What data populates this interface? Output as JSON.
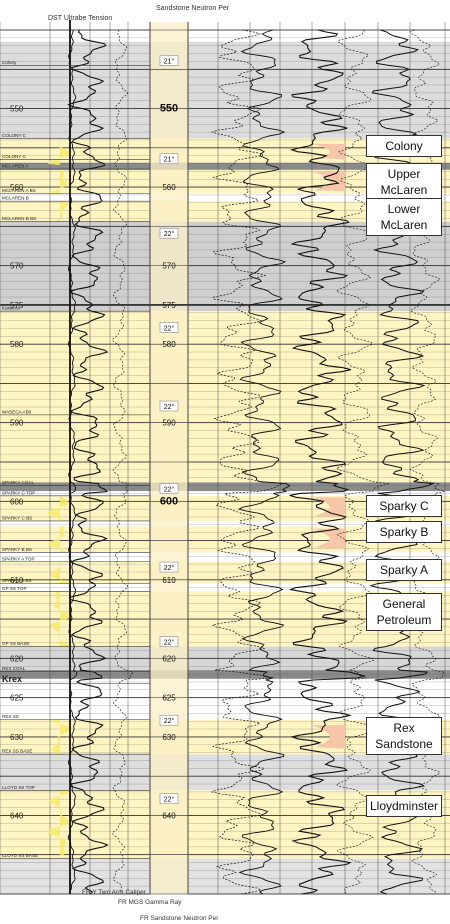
{
  "header": {
    "dst_label": "DST Ultrabe Tension",
    "sandstone_neutron": "Sandstone Neutron Per"
  },
  "footer": {
    "caliper": "FR Y Two Arm Caliper",
    "gamma": "FR MGS Gamma Ray",
    "neutron": "FR Sandstone Neutron Per"
  },
  "depth_axis": {
    "min": 540,
    "max": 650
  },
  "depth_labels": [
    {
      "depth": 550,
      "text": "550"
    },
    {
      "depth": 560,
      "text": "560"
    },
    {
      "depth": 570,
      "text": "570"
    },
    {
      "depth": 575,
      "text": "575"
    },
    {
      "depth": 580,
      "text": "580"
    },
    {
      "depth": 590,
      "text": "590"
    },
    {
      "depth": 600,
      "text": "600"
    },
    {
      "depth": 610,
      "text": "610"
    },
    {
      "depth": 620,
      "text": "620"
    },
    {
      "depth": 625,
      "text": "625"
    },
    {
      "depth": 630,
      "text": "630"
    },
    {
      "depth": 640,
      "text": "640"
    }
  ],
  "inclination_labels": [
    {
      "depth": 544,
      "text": "21°"
    },
    {
      "depth": 556.5,
      "text": "21°"
    },
    {
      "depth": 566,
      "text": "22°"
    },
    {
      "depth": 578,
      "text": "22°"
    },
    {
      "depth": 588,
      "text": "22°"
    },
    {
      "depth": 598.5,
      "text": "22°"
    },
    {
      "depth": 608.5,
      "text": "22°"
    },
    {
      "depth": 618,
      "text": "22°"
    },
    {
      "depth": 628,
      "text": "22°"
    },
    {
      "depth": 638,
      "text": "22°"
    }
  ],
  "markers": [
    {
      "depth": 544.5,
      "text": "Colony"
    },
    {
      "depth": 553.8,
      "text": "COLONY C"
    },
    {
      "depth": 556.5,
      "text": "COLONY C"
    },
    {
      "depth": 557.7,
      "text": "MCLAREN A"
    },
    {
      "depth": 560.8,
      "text": "MCLAREN A BS"
    },
    {
      "depth": 561.8,
      "text": "MCLAREN B"
    },
    {
      "depth": 564.4,
      "text": "MCLAREN B BS"
    },
    {
      "depth": 575.8,
      "text": "Kasseca"
    },
    {
      "depth": 589,
      "text": "WASECA AB0"
    },
    {
      "depth": 598,
      "text": "SPARKY COAL"
    },
    {
      "depth": 599.3,
      "text": "SPARKY C TOP"
    },
    {
      "depth": 602.5,
      "text": "SPARKY C BS"
    },
    {
      "depth": 606.5,
      "text": "SPARKY B BS"
    },
    {
      "depth": 607.7,
      "text": "SPARKY A TOP"
    },
    {
      "depth": 610.5,
      "text": "SPARKY A BS"
    },
    {
      "depth": 611.5,
      "text": "GP SS TOP"
    },
    {
      "depth": 618.5,
      "text": "GP SS BASE"
    },
    {
      "depth": 621.7,
      "text": "REX COAL"
    },
    {
      "depth": 623.2,
      "text": "Krex"
    },
    {
      "depth": 627.8,
      "text": "REX SS"
    },
    {
      "depth": 632.2,
      "text": "REX SS BASE"
    },
    {
      "depth": 636.8,
      "text": "LLOYD SS TOP"
    },
    {
      "depth": 645.5,
      "text": "LLOYD SS BASE"
    }
  ],
  "zones": [
    {
      "top": 553.8,
      "bottom": 557.2,
      "color": "#fff5c2"
    },
    {
      "top": 557.7,
      "bottom": 560.8,
      "color": "#fff5c2"
    },
    {
      "top": 561.8,
      "bottom": 564.4,
      "color": "#fff5c2"
    },
    {
      "top": 575.8,
      "bottom": 597.6,
      "color": "#fff5c2"
    },
    {
      "top": 599.3,
      "bottom": 602.5,
      "color": "#fff5c2"
    },
    {
      "top": 603.2,
      "bottom": 606.5,
      "color": "#fff5c2"
    },
    {
      "top": 607.7,
      "bottom": 610.5,
      "color": "#fff5c2"
    },
    {
      "top": 611.5,
      "bottom": 618.5,
      "color": "#fff5c2"
    },
    {
      "top": 627.8,
      "bottom": 632.2,
      "color": "#fff5c2"
    },
    {
      "top": 636.8,
      "bottom": 645.5,
      "color": "#fff5c2"
    }
  ],
  "shales": [
    {
      "top": 541.5,
      "bottom": 553.8,
      "color": "#dcdcdc"
    },
    {
      "top": 564.4,
      "bottom": 575.8,
      "color": "#cfcfcf"
    },
    {
      "top": 618.5,
      "bottom": 621.5,
      "color": "#d6d6d6"
    },
    {
      "top": 632.2,
      "bottom": 636.8,
      "color": "#dedede"
    },
    {
      "top": 645.5,
      "bottom": 650,
      "color": "#e2e2e2"
    }
  ],
  "coals": [
    {
      "top": 556.9,
      "bottom": 557.8
    },
    {
      "top": 597.6,
      "bottom": 598.7
    },
    {
      "top": 621.5,
      "bottom": 622.6
    }
  ],
  "tags": [
    {
      "name": "Colony",
      "depth": 553.5,
      "text": "Colony"
    },
    {
      "name": "Upper McLaren",
      "depth": 557.0,
      "text": "Upper\nMcLaren"
    },
    {
      "name": "Lower McLaren",
      "depth": 561.5,
      "text": "Lower\nMcLaren"
    },
    {
      "name": "Sparky C",
      "depth": 599.3,
      "text": "Sparky C"
    },
    {
      "name": "Sparky B",
      "depth": 602.6,
      "text": "Sparky B"
    },
    {
      "name": "Sparky A",
      "depth": 607.5,
      "text": "Sparky A"
    },
    {
      "name": "General Petroleum",
      "depth": 611.8,
      "text": "General\nPetroleum"
    },
    {
      "name": "Rex Sandstone",
      "depth": 627.6,
      "text": "Rex\nSandstone"
    },
    {
      "name": "Lloydminster",
      "depth": 637.5,
      "text": "Lloydminster"
    }
  ],
  "pay_fills": [
    {
      "top": 554.5,
      "bottom": 556.5
    },
    {
      "top": 558.0,
      "bottom": 560.5
    },
    {
      "top": 599.5,
      "bottom": 602.0
    },
    {
      "top": 603.5,
      "bottom": 606.0
    },
    {
      "top": 628.5,
      "bottom": 631.5
    }
  ],
  "colors": {
    "zone_yellow": "#fff5c2",
    "gamma_fill": "#f5ea6a",
    "pay_fill": "#f7c6a8",
    "track_yellow": "#fbefc6"
  }
}
